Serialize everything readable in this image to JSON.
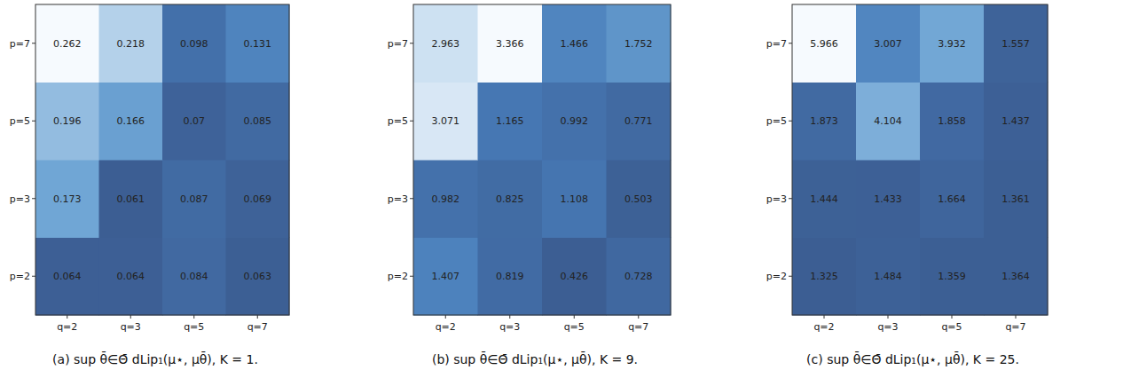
{
  "chart_data": [
    {
      "type": "heatmap",
      "title": "(a) sup θ̄∈Θ̄  dLip₁(μ⋆, μθ̄), K = 1.",
      "x": [
        "q=2",
        "q=3",
        "q=5",
        "q=7"
      ],
      "y": [
        "p=2",
        "p=3",
        "p=5",
        "p=7"
      ],
      "cells": [
        [
          0.064,
          0.064,
          0.084,
          0.063
        ],
        [
          0.173,
          0.061,
          0.087,
          0.069
        ],
        [
          0.196,
          0.166,
          0.07,
          0.085
        ],
        [
          0.262,
          0.218,
          0.098,
          0.131
        ]
      ],
      "data_labels": true
    },
    {
      "type": "heatmap",
      "title": "(b) sup θ̄∈Θ̄  dLip₁(μ⋆, μθ̄), K = 9.",
      "x": [
        "q=2",
        "q=3",
        "q=5",
        "q=7"
      ],
      "y": [
        "p=2",
        "p=3",
        "p=5",
        "p=7"
      ],
      "cells": [
        [
          1.407,
          0.819,
          0.426,
          0.728
        ],
        [
          0.982,
          0.825,
          1.108,
          0.503
        ],
        [
          3.071,
          1.165,
          0.992,
          0.771
        ],
        [
          2.963,
          3.366,
          1.466,
          1.752
        ]
      ],
      "data_labels": true
    },
    {
      "type": "heatmap",
      "title": "(c) sup θ̄∈Θ̄  dLip₁(μ⋆, μθ̄), K = 25.",
      "x": [
        "q=2",
        "q=3",
        "q=5",
        "q=7"
      ],
      "y": [
        "p=2",
        "p=3",
        "p=5",
        "p=7"
      ],
      "cells": [
        [
          1.325,
          1.484,
          1.359,
          1.364
        ],
        [
          1.444,
          1.433,
          1.664,
          1.361
        ],
        [
          1.873,
          4.104,
          1.858,
          1.437
        ],
        [
          5.966,
          3.007,
          3.932,
          1.557
        ]
      ],
      "data_labels": true
    }
  ]
}
